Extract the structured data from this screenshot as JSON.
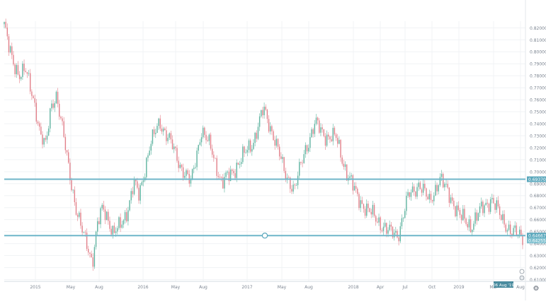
{
  "chart_data": {
    "type": "candlestick",
    "title": "",
    "xlabel": "",
    "ylabel": "",
    "ylim": [
      0.6085,
      0.8255
    ],
    "grid": true,
    "x_tick_labels": [
      "2015",
      "May",
      "Aug",
      "2016",
      "May",
      "Aug",
      "2017",
      "May",
      "Aug",
      "2018",
      "Apr",
      "Jul",
      "Oct",
      "2019",
      "Mar",
      "Aug"
    ],
    "y_tick_labels": [
      "0.82000",
      "0.81000",
      "0.80000",
      "0.79000",
      "0.78000",
      "0.77000",
      "0.76000",
      "0.75000",
      "0.74000",
      "0.73000",
      "0.72000",
      "0.71000",
      "0.70000",
      "0.69000",
      "0.68000",
      "0.67000",
      "0.66000",
      "0.65000",
      "0.64000",
      "0.63000",
      "0.62000",
      "0.61000"
    ],
    "horizontal_levels": [
      {
        "value": 0.6937,
        "label": "0.69370"
      },
      {
        "value": 0.6467,
        "label": "0.64667"
      }
    ],
    "price_tag": "0.64255",
    "time_tag": "06 Aug '19",
    "series": [
      {
        "t": [
          0.0,
          0.01,
          0.02,
          0.03,
          0.04,
          0.05,
          0.06,
          0.07,
          0.08,
          0.09,
          0.1,
          0.11,
          0.12,
          0.13,
          0.14,
          0.15,
          0.16,
          0.17,
          0.18,
          0.19,
          0.2,
          0.21,
          0.22,
          0.23,
          0.24,
          0.25,
          0.26,
          0.28,
          0.3,
          0.32,
          0.34,
          0.36,
          0.38,
          0.4,
          0.42,
          0.44,
          0.46,
          0.48,
          0.5,
          0.52,
          0.54,
          0.56,
          0.58,
          0.6,
          0.62,
          0.64,
          0.66,
          0.68,
          0.7,
          0.72,
          0.74,
          0.76,
          0.78,
          0.8,
          0.82,
          0.84,
          0.86,
          0.88,
          0.9,
          0.92,
          0.94,
          0.96,
          0.98,
          1.0
        ],
        "close": [
          0.823,
          0.8,
          0.788,
          0.782,
          0.785,
          0.77,
          0.755,
          0.73,
          0.72,
          0.755,
          0.765,
          0.74,
          0.715,
          0.69,
          0.665,
          0.65,
          0.64,
          0.625,
          0.655,
          0.67,
          0.662,
          0.648,
          0.652,
          0.66,
          0.672,
          0.69,
          0.68,
          0.72,
          0.742,
          0.725,
          0.705,
          0.69,
          0.735,
          0.718,
          0.69,
          0.7,
          0.712,
          0.725,
          0.752,
          0.73,
          0.7,
          0.685,
          0.718,
          0.74,
          0.73,
          0.728,
          0.7,
          0.68,
          0.668,
          0.66,
          0.65,
          0.648,
          0.68,
          0.69,
          0.675,
          0.694,
          0.68,
          0.662,
          0.655,
          0.668,
          0.678,
          0.66,
          0.65,
          0.645
        ]
      }
    ]
  }
}
